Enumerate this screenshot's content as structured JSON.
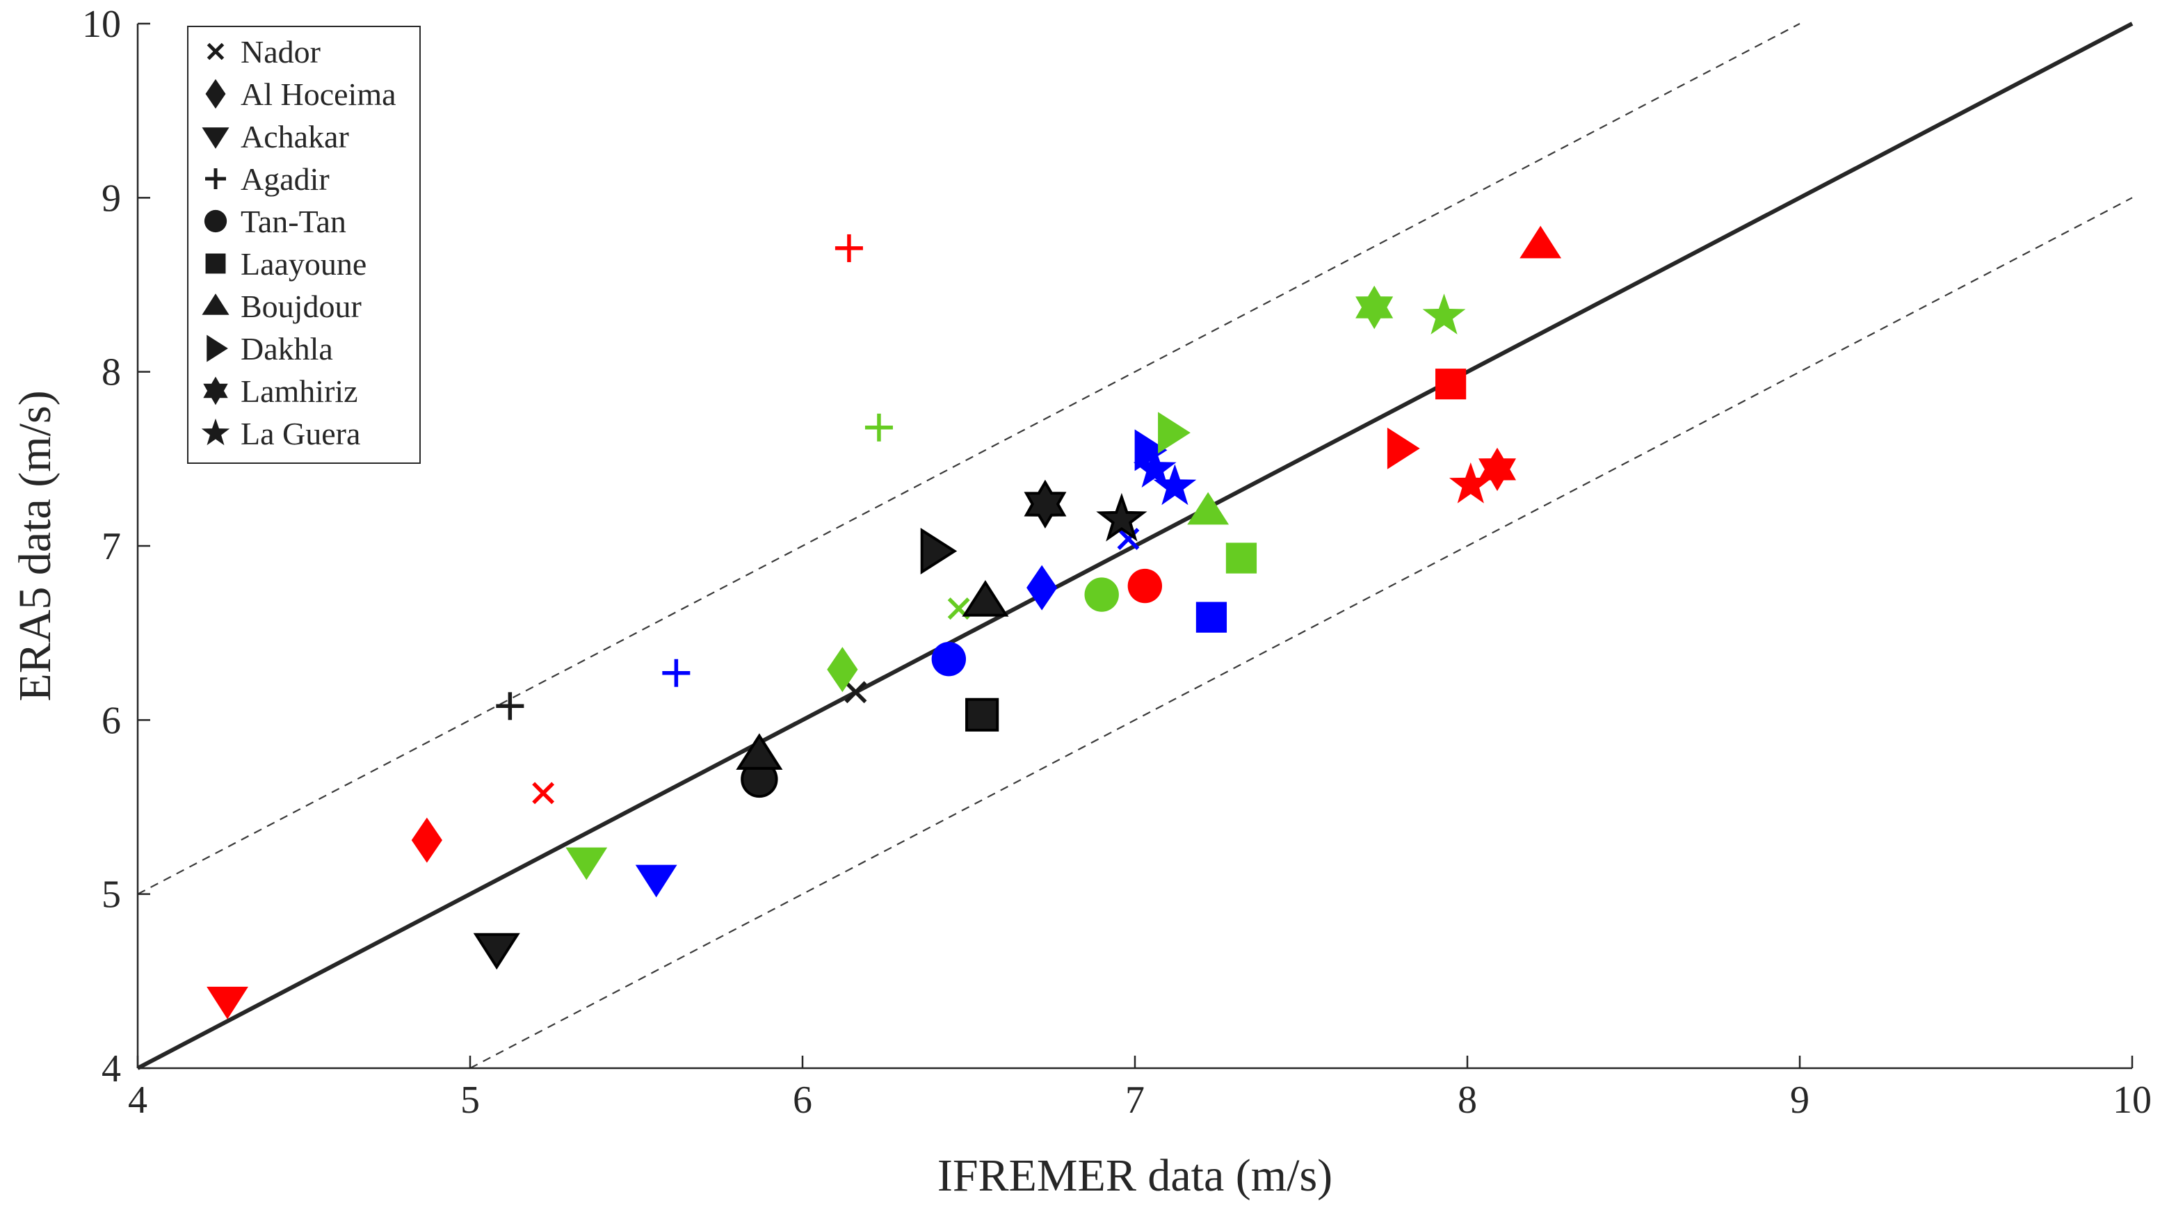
{
  "chart_data": {
    "type": "scatter",
    "title": "",
    "xlabel": "IFREMER data (m/s)",
    "ylabel": "ERA5 data (m/s)",
    "xlim": [
      4,
      10
    ],
    "ylim": [
      4,
      10
    ],
    "xticks": [
      4,
      5,
      6,
      7,
      8,
      9,
      10
    ],
    "yticks": [
      4,
      5,
      6,
      7,
      8,
      9,
      10
    ],
    "grid": false,
    "legend_position": "top-left",
    "reference_lines": [
      {
        "name": "1:1 line",
        "style": "solid",
        "offset": 0
      },
      {
        "name": "+1 m/s",
        "style": "dashed",
        "offset": 1
      },
      {
        "name": "-1 m/s",
        "style": "dashed",
        "offset": -1
      }
    ],
    "colors": {
      "black": "#1a1a1a",
      "red": "#ff0000",
      "green": "#66cc22",
      "blue": "#0000ff"
    },
    "stations": [
      {
        "name": "Nador",
        "marker": "x"
      },
      {
        "name": "Al Hoceima",
        "marker": "diamond"
      },
      {
        "name": "Achakar",
        "marker": "triangle-down"
      },
      {
        "name": "Agadir",
        "marker": "plus"
      },
      {
        "name": "Tan-Tan",
        "marker": "circle"
      },
      {
        "name": "Laayoune",
        "marker": "square"
      },
      {
        "name": "Boujdour",
        "marker": "triangle-up"
      },
      {
        "name": "Dakhla",
        "marker": "triangle-right"
      },
      {
        "name": "Lamhiriz",
        "marker": "hexagram"
      },
      {
        "name": "La Guera",
        "marker": "pentagram"
      }
    ],
    "points": [
      {
        "station": "Nador",
        "color": "black",
        "x": 6.16,
        "y": 6.16
      },
      {
        "station": "Nador",
        "color": "red",
        "x": 5.22,
        "y": 5.58
      },
      {
        "station": "Nador",
        "color": "green",
        "x": 6.47,
        "y": 6.64
      },
      {
        "station": "Nador",
        "color": "blue",
        "x": 6.98,
        "y": 7.04
      },
      {
        "station": "Al Hoceima",
        "color": "red",
        "x": 4.87,
        "y": 5.31
      },
      {
        "station": "Al Hoceima",
        "color": "green",
        "x": 6.12,
        "y": 6.29
      },
      {
        "station": "Al Hoceima",
        "color": "blue",
        "x": 6.72,
        "y": 6.76
      },
      {
        "station": "Achakar",
        "color": "red",
        "x": 4.27,
        "y": 4.39
      },
      {
        "station": "Achakar",
        "color": "black",
        "x": 5.08,
        "y": 4.69
      },
      {
        "station": "Achakar",
        "color": "green",
        "x": 5.35,
        "y": 5.19
      },
      {
        "station": "Achakar",
        "color": "blue",
        "x": 5.56,
        "y": 5.09
      },
      {
        "station": "Agadir",
        "color": "black",
        "x": 5.12,
        "y": 6.08
      },
      {
        "station": "Agadir",
        "color": "red",
        "x": 6.14,
        "y": 8.71
      },
      {
        "station": "Agadir",
        "color": "green",
        "x": 6.23,
        "y": 7.68
      },
      {
        "station": "Agadir",
        "color": "blue",
        "x": 5.62,
        "y": 6.27
      },
      {
        "station": "Tan-Tan",
        "color": "black",
        "x": 5.87,
        "y": 5.66
      },
      {
        "station": "Tan-Tan",
        "color": "blue",
        "x": 6.44,
        "y": 6.35
      },
      {
        "station": "Tan-Tan",
        "color": "green",
        "x": 6.9,
        "y": 6.72
      },
      {
        "station": "Tan-Tan",
        "color": "red",
        "x": 7.03,
        "y": 6.77
      },
      {
        "station": "Laayoune",
        "color": "black",
        "x": 6.54,
        "y": 6.03
      },
      {
        "station": "Laayoune",
        "color": "green",
        "x": 7.32,
        "y": 6.93
      },
      {
        "station": "Laayoune",
        "color": "blue",
        "x": 7.23,
        "y": 6.59
      },
      {
        "station": "Laayoune",
        "color": "red",
        "x": 7.95,
        "y": 7.93
      },
      {
        "station": "Boujdour",
        "color": "black",
        "x": 5.87,
        "y": 5.8
      },
      {
        "station": "Boujdour",
        "color": "black",
        "x": 6.55,
        "y": 6.68
      },
      {
        "station": "Boujdour",
        "color": "green",
        "x": 7.22,
        "y": 7.2
      },
      {
        "station": "Boujdour",
        "color": "red",
        "x": 8.22,
        "y": 8.73
      },
      {
        "station": "Dakhla",
        "color": "black",
        "x": 6.4,
        "y": 6.97
      },
      {
        "station": "Dakhla",
        "color": "blue",
        "x": 7.04,
        "y": 7.55
      },
      {
        "station": "Dakhla",
        "color": "green",
        "x": 7.11,
        "y": 7.65
      },
      {
        "station": "Dakhla",
        "color": "red",
        "x": 7.8,
        "y": 7.56
      },
      {
        "station": "Lamhiriz",
        "color": "black",
        "x": 6.73,
        "y": 7.24
      },
      {
        "station": "Lamhiriz",
        "color": "green",
        "x": 7.72,
        "y": 8.37
      },
      {
        "station": "Lamhiriz",
        "color": "red",
        "x": 8.09,
        "y": 7.44
      },
      {
        "station": "La Guera",
        "color": "black",
        "x": 6.96,
        "y": 7.15
      },
      {
        "station": "La Guera",
        "color": "blue",
        "x": 7.06,
        "y": 7.44
      },
      {
        "station": "La Guera",
        "color": "blue",
        "x": 7.12,
        "y": 7.34
      },
      {
        "station": "La Guera",
        "color": "green",
        "x": 7.93,
        "y": 8.32
      },
      {
        "station": "La Guera",
        "color": "red",
        "x": 8.01,
        "y": 7.35
      }
    ]
  }
}
